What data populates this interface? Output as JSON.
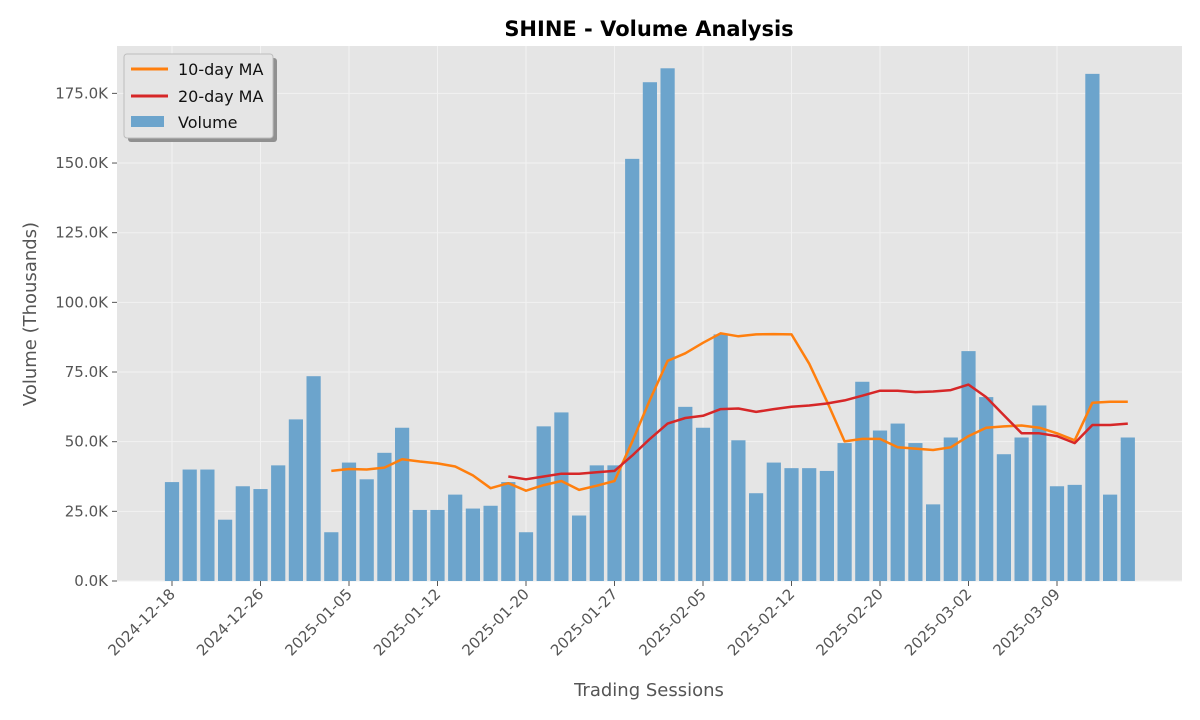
{
  "chart_data": {
    "type": "bar",
    "title": "SHINE - Volume Analysis",
    "xlabel": "Trading Sessions",
    "ylabel": "Volume (Thousands)",
    "ylim": [
      0,
      192000
    ],
    "y_ticks": [
      0,
      25000,
      50000,
      75000,
      100000,
      125000,
      150000,
      175000
    ],
    "y_tick_labels": [
      "0.0K",
      "25.0K",
      "50.0K",
      "75.0K",
      "100.0K",
      "125.0K",
      "150.0K",
      "175.0K"
    ],
    "x_tick_labels": [
      {
        "index": 0,
        "label": "2024-12-18"
      },
      {
        "index": 5,
        "label": "2024-12-26"
      },
      {
        "index": 10,
        "label": "2025-01-05"
      },
      {
        "index": 15,
        "label": "2025-01-12"
      },
      {
        "index": 20,
        "label": "2025-01-20"
      },
      {
        "index": 25,
        "label": "2025-01-27"
      },
      {
        "index": 30,
        "label": "2025-02-05"
      },
      {
        "index": 35,
        "label": "2025-02-12"
      },
      {
        "index": 40,
        "label": "2025-02-20"
      },
      {
        "index": 45,
        "label": "2025-03-02"
      },
      {
        "index": 50,
        "label": "2025-03-09"
      }
    ],
    "grid": true,
    "legend_position": "top-left",
    "colors": {
      "volume": "#6ca4cc",
      "ma10": "#ff7f0e",
      "ma20": "#d62728",
      "plot_bg": "#e5e5e5",
      "grid": "#f2f2f2"
    },
    "series": [
      {
        "name": "Volume",
        "kind": "bar",
        "values": [
          35500,
          40000,
          40000,
          22000,
          34000,
          33000,
          41500,
          58000,
          73500,
          17500,
          42500,
          36500,
          46000,
          55000,
          25500,
          25500,
          31000,
          26000,
          27000,
          35500,
          17500,
          55500,
          60500,
          23500,
          41500,
          41500,
          151500,
          179000,
          184000,
          62500,
          55000,
          88500,
          50500,
          31500,
          42500,
          40500,
          40500,
          39500,
          49500,
          71500,
          54000,
          56500,
          49500,
          27500,
          51500,
          82500,
          66000,
          45500,
          51500,
          63000,
          34000,
          34500,
          182000,
          31000,
          51500
        ]
      },
      {
        "name": "10-day MA",
        "kind": "line",
        "values": [
          null,
          null,
          null,
          null,
          null,
          null,
          null,
          null,
          null,
          39500,
          40200,
          40000,
          40700,
          43700,
          42900,
          42200,
          41100,
          37900,
          33300,
          35100,
          32400,
          34400,
          35900,
          32700,
          34200,
          35900,
          50000,
          65000,
          79000,
          81700,
          85500,
          88900,
          87800,
          88500,
          88600,
          88500,
          78000,
          64500,
          50100,
          51000,
          51000,
          48000,
          47500,
          47000,
          48000,
          52000,
          55000,
          55500,
          55800,
          55000,
          53000,
          50500,
          64000,
          64300,
          64300
        ]
      },
      {
        "name": "20-day MA",
        "kind": "line",
        "values": [
          null,
          null,
          null,
          null,
          null,
          null,
          null,
          null,
          null,
          null,
          null,
          null,
          null,
          null,
          null,
          null,
          null,
          null,
          null,
          37500,
          36500,
          37500,
          38500,
          38500,
          39000,
          39500,
          45000,
          51000,
          56500,
          58500,
          59300,
          61700,
          61900,
          60700,
          61700,
          62500,
          63000,
          63700,
          64800,
          66500,
          68300,
          68300,
          67800,
          68000,
          68500,
          70500,
          66000,
          59500,
          53000,
          53000,
          52000,
          49500,
          56000,
          56000,
          56500
        ]
      }
    ]
  }
}
